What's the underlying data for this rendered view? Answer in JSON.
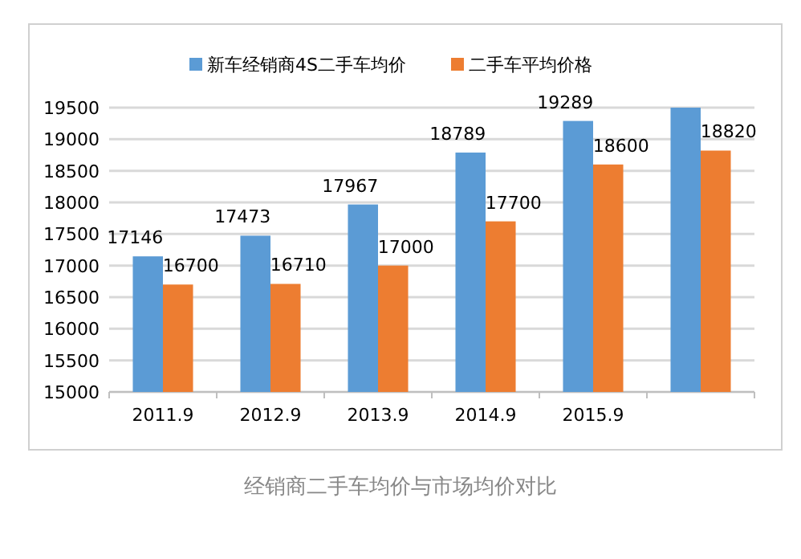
{
  "chart_data": {
    "type": "bar",
    "categories": [
      "2011.9",
      "2012.9",
      "2013.9",
      "2014.9",
      "2015.9",
      null
    ],
    "series": [
      {
        "name": "新车经销商4S二手车均价",
        "color": "#5b9bd5",
        "values": [
          17146,
          17473,
          17967,
          18789,
          19289,
          19500
        ],
        "value_labels": [
          "17146",
          "17473",
          "17967",
          "18789",
          "19289",
          null
        ]
      },
      {
        "name": "二手车平均价格",
        "color": "#ed7d31",
        "values": [
          16700,
          16710,
          17000,
          17700,
          18600,
          18820
        ],
        "value_labels": [
          "16700",
          "16710",
          "17000",
          "17700",
          "18600",
          "18820"
        ]
      }
    ],
    "ylim": [
      15000,
      19500
    ],
    "yticks": [
      15000,
      15500,
      16000,
      16500,
      17000,
      17500,
      18000,
      18500,
      19000,
      19500
    ],
    "grid": "y",
    "legend": "top",
    "annotations": [
      "经销商二手车均价与市场均价对比"
    ]
  }
}
